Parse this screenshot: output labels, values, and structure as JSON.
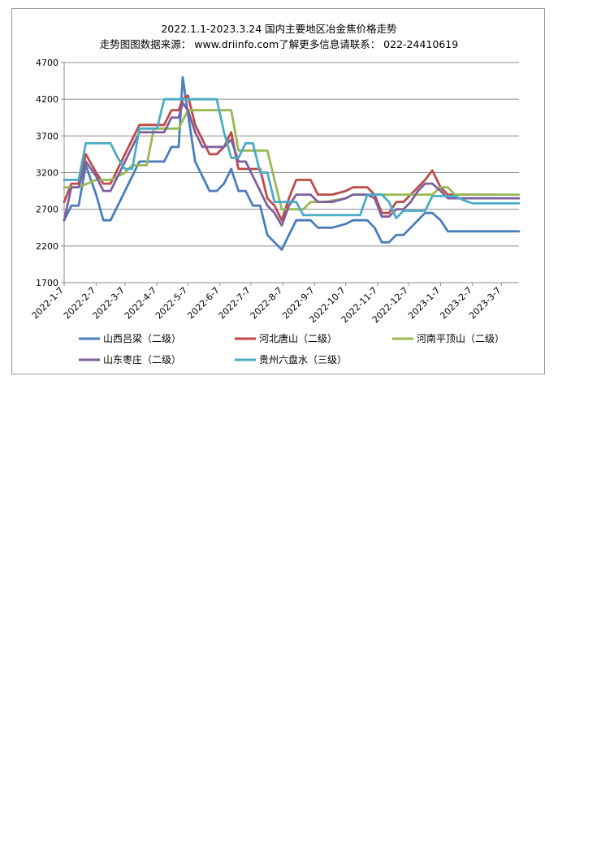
{
  "chart_data": {
    "type": "line",
    "title": "2022.1.1-2023.3.24  国内主要地区冶金焦价格走势",
    "subtitle": "走势图图数据来源：  www.driinfo.com了解更多信息请联系：  022-24410619",
    "xlabel": "",
    "ylabel": "",
    "ylim": [
      1700,
      4700
    ],
    "yticks": [
      1700,
      2200,
      2700,
      3200,
      3700,
      4200,
      4700
    ],
    "xlim": [
      "2022-01-07",
      "2023-03-24"
    ],
    "xticks": [
      "2022-1-7",
      "2022-2-7",
      "2022-3-7",
      "2022-4-7",
      "2022-5-7",
      "2022-6-7",
      "2022-7-7",
      "2022-8-7",
      "2022-9-7",
      "2022-10-7",
      "2022-11-7",
      "2022-12-7",
      "2023-1-7",
      "2023-2-7",
      "2023-3-7"
    ],
    "grid": "horizontal",
    "legend_position": "bottom",
    "series": [
      {
        "name": "山西吕梁（二级）",
        "color": "#4a7ebb",
        "points": [
          [
            "2022-01-07",
            2550
          ],
          [
            "2022-01-14",
            2750
          ],
          [
            "2022-01-21",
            2750
          ],
          [
            "2022-01-28",
            3300
          ],
          [
            "2022-02-07",
            2900
          ],
          [
            "2022-02-14",
            2550
          ],
          [
            "2022-02-21",
            2550
          ],
          [
            "2022-02-28",
            2750
          ],
          [
            "2022-03-07",
            2950
          ],
          [
            "2022-03-14",
            3150
          ],
          [
            "2022-03-21",
            3350
          ],
          [
            "2022-03-28",
            3350
          ],
          [
            "2022-04-07",
            3350
          ],
          [
            "2022-04-14",
            3350
          ],
          [
            "2022-04-21",
            3550
          ],
          [
            "2022-04-28",
            3550
          ],
          [
            "2022-05-02",
            4500
          ],
          [
            "2022-05-07",
            4000
          ],
          [
            "2022-05-14",
            3350
          ],
          [
            "2022-05-21",
            3150
          ],
          [
            "2022-05-28",
            2950
          ],
          [
            "2022-06-04",
            2950
          ],
          [
            "2022-06-11",
            3050
          ],
          [
            "2022-06-18",
            3250
          ],
          [
            "2022-06-25",
            2950
          ],
          [
            "2022-07-02",
            2950
          ],
          [
            "2022-07-09",
            2750
          ],
          [
            "2022-07-16",
            2750
          ],
          [
            "2022-07-23",
            2350
          ],
          [
            "2022-07-30",
            2250
          ],
          [
            "2022-08-06",
            2150
          ],
          [
            "2022-08-13",
            2350
          ],
          [
            "2022-08-20",
            2550
          ],
          [
            "2022-08-27",
            2550
          ],
          [
            "2022-09-03",
            2550
          ],
          [
            "2022-09-10",
            2450
          ],
          [
            "2022-09-17",
            2450
          ],
          [
            "2022-09-24",
            2450
          ],
          [
            "2022-10-07",
            2500
          ],
          [
            "2022-10-14",
            2550
          ],
          [
            "2022-10-21",
            2550
          ],
          [
            "2022-10-28",
            2550
          ],
          [
            "2022-11-04",
            2450
          ],
          [
            "2022-11-11",
            2250
          ],
          [
            "2022-11-18",
            2250
          ],
          [
            "2022-11-25",
            2350
          ],
          [
            "2022-12-02",
            2350
          ],
          [
            "2022-12-09",
            2450
          ],
          [
            "2022-12-16",
            2550
          ],
          [
            "2022-12-23",
            2650
          ],
          [
            "2022-12-30",
            2650
          ],
          [
            "2023-01-07",
            2550
          ],
          [
            "2023-01-14",
            2400
          ],
          [
            "2023-03-24",
            2400
          ]
        ]
      },
      {
        "name": "河北唐山（二级）",
        "color": "#be4b48",
        "points": [
          [
            "2022-01-07",
            2800
          ],
          [
            "2022-01-14",
            3050
          ],
          [
            "2022-01-21",
            3050
          ],
          [
            "2022-01-28",
            3450
          ],
          [
            "2022-02-07",
            3200
          ],
          [
            "2022-02-14",
            3050
          ],
          [
            "2022-02-21",
            3050
          ],
          [
            "2022-02-28",
            3250
          ],
          [
            "2022-03-07",
            3450
          ],
          [
            "2022-03-14",
            3650
          ],
          [
            "2022-03-21",
            3850
          ],
          [
            "2022-04-07",
            3850
          ],
          [
            "2022-04-14",
            3850
          ],
          [
            "2022-04-21",
            4050
          ],
          [
            "2022-04-28",
            4050
          ],
          [
            "2022-05-02",
            4200
          ],
          [
            "2022-05-07",
            4250
          ],
          [
            "2022-05-14",
            3850
          ],
          [
            "2022-05-21",
            3650
          ],
          [
            "2022-05-28",
            3450
          ],
          [
            "2022-06-04",
            3450
          ],
          [
            "2022-06-11",
            3550
          ],
          [
            "2022-06-18",
            3750
          ],
          [
            "2022-06-25",
            3250
          ],
          [
            "2022-07-02",
            3250
          ],
          [
            "2022-07-09",
            3250
          ],
          [
            "2022-07-16",
            3250
          ],
          [
            "2022-07-23",
            2850
          ],
          [
            "2022-07-30",
            2750
          ],
          [
            "2022-08-06",
            2550
          ],
          [
            "2022-08-13",
            2850
          ],
          [
            "2022-08-20",
            3100
          ],
          [
            "2022-08-27",
            3100
          ],
          [
            "2022-09-03",
            3100
          ],
          [
            "2022-09-10",
            2900
          ],
          [
            "2022-09-17",
            2900
          ],
          [
            "2022-09-24",
            2900
          ],
          [
            "2022-10-07",
            2950
          ],
          [
            "2022-10-14",
            3000
          ],
          [
            "2022-10-21",
            3000
          ],
          [
            "2022-10-28",
            3000
          ],
          [
            "2022-11-04",
            2900
          ],
          [
            "2022-11-11",
            2650
          ],
          [
            "2022-11-18",
            2650
          ],
          [
            "2022-11-25",
            2800
          ],
          [
            "2022-12-02",
            2800
          ],
          [
            "2022-12-09",
            2900
          ],
          [
            "2022-12-16",
            3000
          ],
          [
            "2022-12-23",
            3100
          ],
          [
            "2022-12-30",
            3230
          ],
          [
            "2023-01-07",
            3000
          ],
          [
            "2023-01-14",
            2900
          ],
          [
            "2023-02-28",
            2900
          ]
        ]
      },
      {
        "name": "河南平顶山（二级）",
        "color": "#98b954",
        "points": [
          [
            "2022-01-07",
            3000
          ],
          [
            "2022-01-21",
            3000
          ],
          [
            "2022-02-07",
            3100
          ],
          [
            "2022-02-21",
            3100
          ],
          [
            "2022-03-07",
            3200
          ],
          [
            "2022-03-14",
            3300
          ],
          [
            "2022-03-28",
            3300
          ],
          [
            "2022-04-04",
            3800
          ],
          [
            "2022-04-28",
            3800
          ],
          [
            "2022-05-07",
            4050
          ],
          [
            "2022-06-18",
            4050
          ],
          [
            "2022-06-25",
            3500
          ],
          [
            "2022-07-23",
            3500
          ],
          [
            "2022-08-06",
            2700
          ],
          [
            "2022-08-27",
            2700
          ],
          [
            "2022-09-03",
            2800
          ],
          [
            "2022-09-17",
            2800
          ],
          [
            "2022-10-07",
            2850
          ],
          [
            "2022-10-14",
            2900
          ],
          [
            "2022-12-30",
            2900
          ],
          [
            "2023-01-07",
            3000
          ],
          [
            "2023-01-14",
            3000
          ],
          [
            "2023-01-21",
            2900
          ],
          [
            "2023-03-24",
            2900
          ]
        ]
      },
      {
        "name": "山东枣庄（二级）",
        "color": "#7d60a0",
        "points": [
          [
            "2022-01-07",
            2550
          ],
          [
            "2022-01-14",
            3000
          ],
          [
            "2022-01-21",
            3000
          ],
          [
            "2022-01-28",
            3350
          ],
          [
            "2022-02-07",
            3150
          ],
          [
            "2022-02-14",
            2950
          ],
          [
            "2022-02-21",
            2950
          ],
          [
            "2022-02-28",
            3150
          ],
          [
            "2022-03-07",
            3350
          ],
          [
            "2022-03-14",
            3550
          ],
          [
            "2022-03-21",
            3750
          ],
          [
            "2022-04-07",
            3750
          ],
          [
            "2022-04-14",
            3750
          ],
          [
            "2022-04-21",
            3950
          ],
          [
            "2022-04-28",
            3950
          ],
          [
            "2022-05-02",
            4150
          ],
          [
            "2022-05-07",
            4050
          ],
          [
            "2022-05-14",
            3750
          ],
          [
            "2022-05-21",
            3550
          ],
          [
            "2022-06-11",
            3550
          ],
          [
            "2022-06-18",
            3650
          ],
          [
            "2022-06-25",
            3350
          ],
          [
            "2022-07-02",
            3350
          ],
          [
            "2022-07-09",
            3150
          ],
          [
            "2022-07-23",
            2750
          ],
          [
            "2022-07-30",
            2650
          ],
          [
            "2022-08-06",
            2480
          ],
          [
            "2022-08-13",
            2750
          ],
          [
            "2022-08-20",
            2900
          ],
          [
            "2022-08-27",
            2900
          ],
          [
            "2022-09-03",
            2900
          ],
          [
            "2022-09-10",
            2800
          ],
          [
            "2022-09-24",
            2800
          ],
          [
            "2022-10-07",
            2850
          ],
          [
            "2022-10-14",
            2900
          ],
          [
            "2022-10-28",
            2900
          ],
          [
            "2022-11-04",
            2850
          ],
          [
            "2022-11-11",
            2600
          ],
          [
            "2022-11-18",
            2600
          ],
          [
            "2022-11-25",
            2700
          ],
          [
            "2022-12-02",
            2700
          ],
          [
            "2022-12-09",
            2800
          ],
          [
            "2022-12-16",
            2950
          ],
          [
            "2022-12-23",
            3050
          ],
          [
            "2022-12-30",
            3050
          ],
          [
            "2023-01-07",
            2950
          ],
          [
            "2023-01-14",
            2850
          ],
          [
            "2023-03-24",
            2850
          ]
        ]
      },
      {
        "name": "贵州六盘水（三级）",
        "color": "#4bacc6",
        "points": [
          [
            "2022-01-07",
            3100
          ],
          [
            "2022-01-21",
            3100
          ],
          [
            "2022-01-28",
            3600
          ],
          [
            "2022-02-21",
            3600
          ],
          [
            "2022-02-28",
            3400
          ],
          [
            "2022-03-07",
            3250
          ],
          [
            "2022-03-14",
            3250
          ],
          [
            "2022-03-21",
            3800
          ],
          [
            "2022-04-07",
            3800
          ],
          [
            "2022-04-14",
            4200
          ],
          [
            "2022-06-04",
            4200
          ],
          [
            "2022-06-11",
            3750
          ],
          [
            "2022-06-18",
            3400
          ],
          [
            "2022-06-25",
            3400
          ],
          [
            "2022-07-02",
            3600
          ],
          [
            "2022-07-09",
            3600
          ],
          [
            "2022-07-16",
            3200
          ],
          [
            "2022-07-23",
            3200
          ],
          [
            "2022-07-30",
            2800
          ],
          [
            "2022-08-20",
            2800
          ],
          [
            "2022-08-27",
            2620
          ],
          [
            "2022-10-21",
            2620
          ],
          [
            "2022-10-28",
            2900
          ],
          [
            "2022-11-11",
            2900
          ],
          [
            "2022-11-18",
            2800
          ],
          [
            "2022-11-25",
            2580
          ],
          [
            "2022-12-02",
            2680
          ],
          [
            "2022-12-23",
            2680
          ],
          [
            "2022-12-30",
            2880
          ],
          [
            "2023-01-21",
            2880
          ],
          [
            "2023-01-28",
            2830
          ],
          [
            "2023-02-07",
            2780
          ],
          [
            "2023-03-24",
            2780
          ]
        ]
      }
    ]
  }
}
